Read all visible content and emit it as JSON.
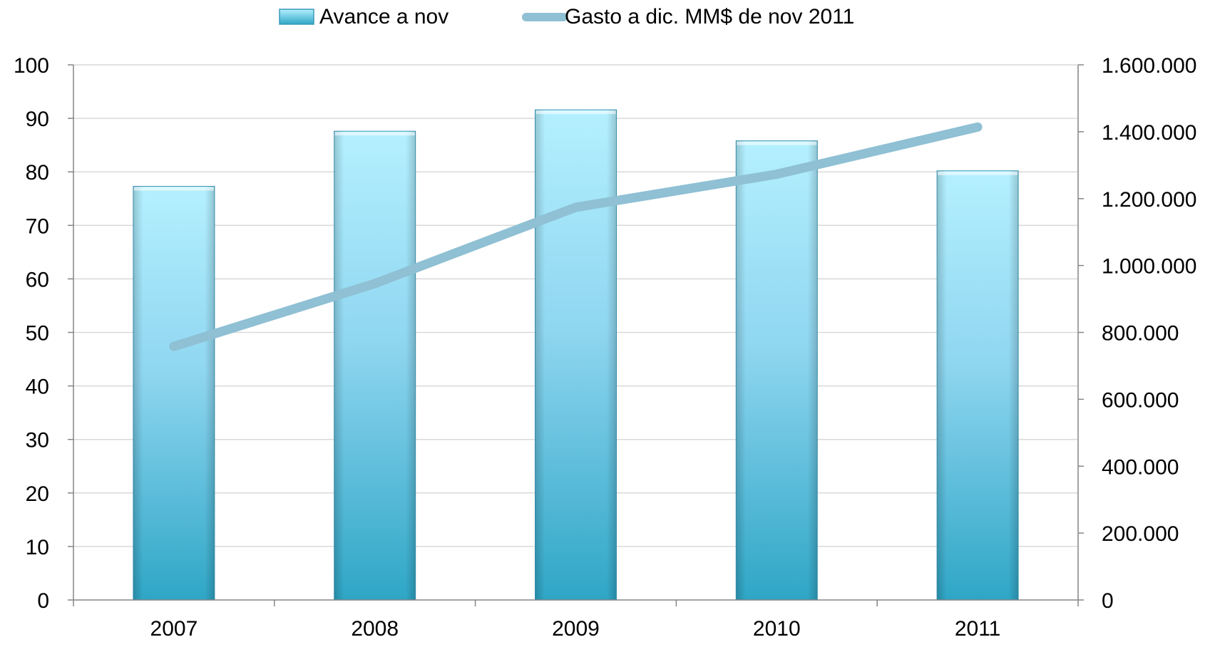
{
  "chart_data": {
    "type": "bar",
    "categories": [
      "2007",
      "2008",
      "2009",
      "2010",
      "2011"
    ],
    "series": [
      {
        "name": "Avance a nov",
        "type": "bar",
        "axis": "left",
        "values": [
          77.3,
          87.6,
          91.6,
          85.8,
          80.2
        ]
      },
      {
        "name": "Gasto a dic. MM$ de nov 2011",
        "type": "line",
        "axis": "right",
        "values": [
          758000,
          946000,
          1174000,
          1273000,
          1414000
        ]
      }
    ],
    "y_left": {
      "lim": [
        0,
        100
      ],
      "ticks": [
        0,
        10,
        20,
        30,
        40,
        50,
        60,
        70,
        80,
        90,
        100
      ],
      "tick_labels": [
        "0",
        "10",
        "20",
        "30",
        "40",
        "50",
        "60",
        "70",
        "80",
        "90",
        "100"
      ]
    },
    "y_right": {
      "lim": [
        0,
        1600000
      ],
      "ticks": [
        0,
        200000,
        400000,
        600000,
        800000,
        1000000,
        1200000,
        1400000,
        1600000
      ],
      "tick_labels": [
        "0",
        "200.000",
        "400.000",
        "600.000",
        "800.000",
        "1.000.000",
        "1.200.000",
        "1.400.000",
        "1.600.000"
      ]
    },
    "legend": {
      "position": "top",
      "items": [
        "Avance a nov",
        "Gasto a dic. MM$ de nov 2011"
      ]
    },
    "grid": true,
    "colors": {
      "bar_top": "#b4f0ff",
      "bar_mid": "#8fd6f0",
      "bar_bottom": "#2fa6c6",
      "bar_edge": "#3a9ab8",
      "line": "#8fc0d4",
      "grid": "#d9d9d9",
      "axis": "#868686"
    }
  }
}
